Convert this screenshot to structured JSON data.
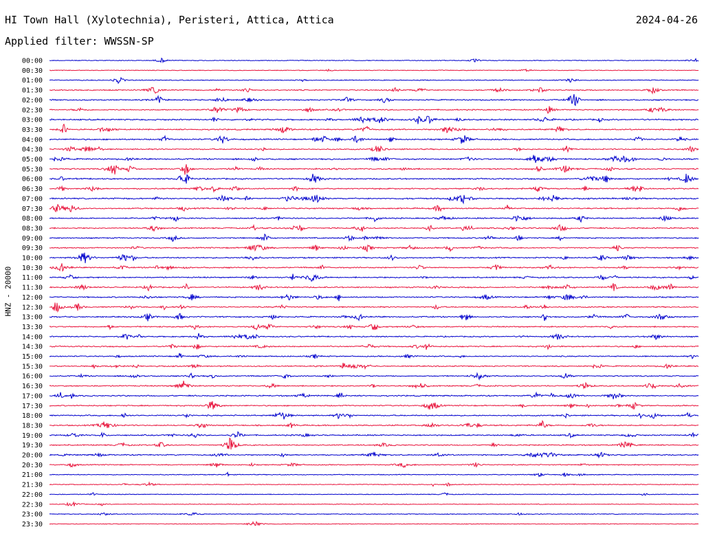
{
  "header": {
    "station": "HI Town Hall (Xylotechnia), Peristeri, Attica, Attica",
    "date": "2024-04-26",
    "filter": "Applied filter: WWSSN-SP"
  },
  "chart_data": {
    "type": "line",
    "ylabel": "HNZ - 20000",
    "time_labels": [
      "00:00",
      "00:30",
      "01:00",
      "01:30",
      "02:00",
      "02:30",
      "03:00",
      "03:30",
      "04:00",
      "04:30",
      "05:00",
      "05:30",
      "06:00",
      "06:30",
      "07:00",
      "07:30",
      "08:00",
      "08:30",
      "09:00",
      "09:30",
      "10:00",
      "10:30",
      "11:00",
      "11:30",
      "12:00",
      "12:30",
      "13:00",
      "13:30",
      "14:00",
      "14:30",
      "15:00",
      "15:30",
      "16:00",
      "16:30",
      "17:00",
      "17:30",
      "18:00",
      "18:30",
      "19:00",
      "19:30",
      "20:00",
      "20:30",
      "21:00",
      "21:30",
      "22:00",
      "22:30",
      "23:00",
      "23:30"
    ],
    "trace_colors": [
      "#0000cc",
      "#e8143c"
    ],
    "activity": [
      0.2,
      0.15,
      0.25,
      0.6,
      0.7,
      0.65,
      0.85,
      0.75,
      0.8,
      0.7,
      0.9,
      0.85,
      0.8,
      0.75,
      0.85,
      0.75,
      0.7,
      0.75,
      0.65,
      0.7,
      0.7,
      0.75,
      0.7,
      0.75,
      0.7,
      0.7,
      0.75,
      0.7,
      0.65,
      0.7,
      0.6,
      0.65,
      0.6,
      0.7,
      0.7,
      0.65,
      0.7,
      0.7,
      0.7,
      0.65,
      0.7,
      0.5,
      0.3,
      0.25,
      0.2,
      0.2,
      0.2,
      0.15
    ]
  }
}
